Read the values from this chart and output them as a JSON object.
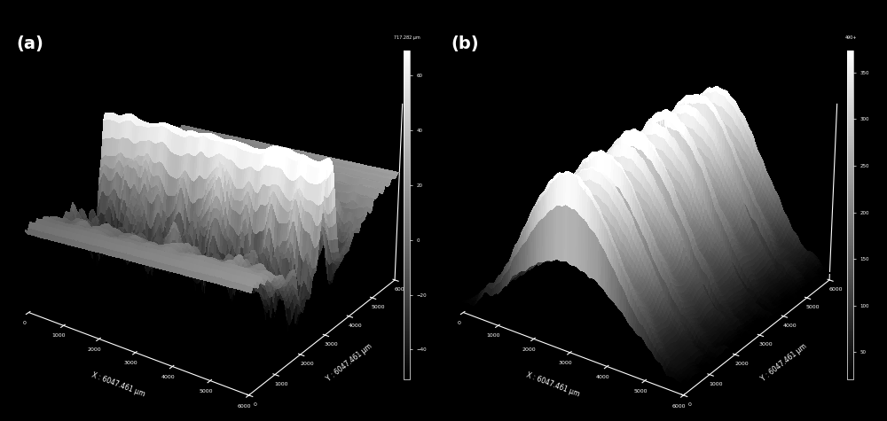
{
  "panel_a_label": "(a)",
  "panel_b_label": "(b)",
  "background_color": "#000000",
  "label_color": "#ffffff",
  "label_fontsize": 14,
  "label_fontweight": "bold",
  "x_label": "X : 6047.461 μm",
  "y_label": "Y : 6047.461 μm",
  "colorbar_a_top_label": "717.282 μm",
  "colorbar_b_top_label": "490+",
  "axis_ticks": [
    0,
    1000,
    2000,
    3000,
    4000,
    5000,
    6000
  ],
  "grid_size": 100,
  "elev_a": 28,
  "azim_a": -55,
  "elev_b": 28,
  "azim_b": -55,
  "num_ripples_b": 5,
  "fig_width": 10.0,
  "fig_height": 4.75,
  "dpi": 100
}
